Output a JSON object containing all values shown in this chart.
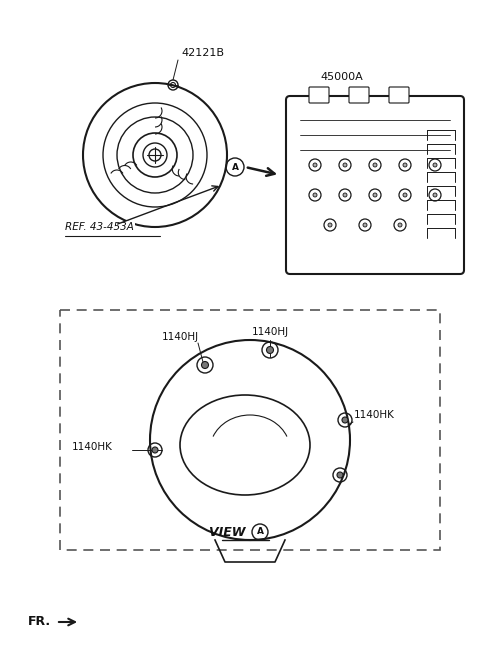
{
  "bg_color": "#ffffff",
  "figsize": [
    4.8,
    6.71
  ],
  "dpi": 100,
  "labels": {
    "part1_id": "42121B",
    "part2_id": "45000A",
    "part3_id": "1140HJ",
    "part4_id": "1140HK",
    "ref_label": "REF. 43-453A",
    "view_label": "VIEW",
    "fr_label": "FR.",
    "circle_label": "A"
  },
  "colors": {
    "drawing": "#1a1a1a",
    "border": "#333333",
    "dash_box": "#555555",
    "text": "#111111",
    "white": "#ffffff"
  }
}
